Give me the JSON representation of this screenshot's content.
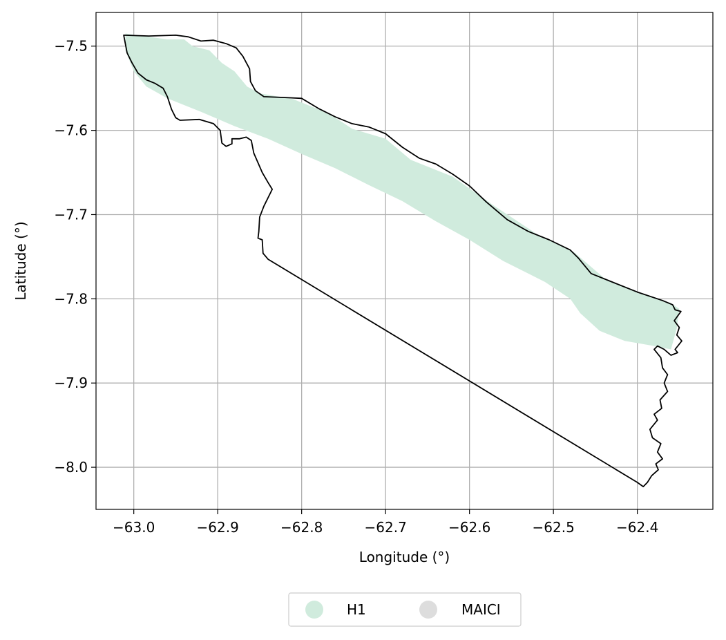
{
  "chart_data": {
    "type": "map",
    "xlabel": "Longitude (°)",
    "ylabel": "Latitude (°)",
    "xlim": [
      -63.045,
      -62.31
    ],
    "ylim": [
      -8.05,
      -7.46
    ],
    "x_ticks": [
      {
        "value": -63.0,
        "label": "−63.0"
      },
      {
        "value": -62.9,
        "label": "−62.9"
      },
      {
        "value": -62.8,
        "label": "−62.8"
      },
      {
        "value": -62.7,
        "label": "−62.7"
      },
      {
        "value": -62.6,
        "label": "−62.6"
      },
      {
        "value": -62.5,
        "label": "−62.5"
      },
      {
        "value": -62.4,
        "label": "−62.4"
      }
    ],
    "y_ticks": [
      {
        "value": -7.5,
        "label": "−7.5"
      },
      {
        "value": -7.6,
        "label": "−7.6"
      },
      {
        "value": -7.7,
        "label": "−7.7"
      },
      {
        "value": -7.8,
        "label": "−7.8"
      },
      {
        "value": -7.9,
        "label": "−7.9"
      },
      {
        "value": -8.0,
        "label": "−8.0"
      }
    ],
    "grid": true,
    "legend": {
      "placement": "bottom-center-outside",
      "entries": [
        {
          "name": "H1",
          "color": "#d0ebdd"
        },
        {
          "name": "MAICI",
          "color": "#dddddd"
        }
      ]
    },
    "colors": {
      "h1_fill": "#d0ebdd",
      "boundary": "#000000",
      "grid": "#b0b0b0"
    },
    "layers": [
      {
        "name": "H1",
        "kind": "filled-polygon",
        "coords": [
          [
            -63.01,
            -7.485
          ],
          [
            -62.96,
            -7.492
          ],
          [
            -62.94,
            -7.492
          ],
          [
            -62.93,
            -7.5
          ],
          [
            -62.91,
            -7.505
          ],
          [
            -62.895,
            -7.52
          ],
          [
            -62.88,
            -7.53
          ],
          [
            -62.865,
            -7.548
          ],
          [
            -62.85,
            -7.556
          ],
          [
            -62.81,
            -7.563
          ],
          [
            -62.78,
            -7.575
          ],
          [
            -62.76,
            -7.585
          ],
          [
            -62.74,
            -7.598
          ],
          [
            -62.7,
            -7.61
          ],
          [
            -62.67,
            -7.635
          ],
          [
            -62.62,
            -7.655
          ],
          [
            -62.57,
            -7.69
          ],
          [
            -62.52,
            -7.723
          ],
          [
            -62.475,
            -7.745
          ],
          [
            -62.44,
            -7.775
          ],
          [
            -62.4,
            -7.793
          ],
          [
            -62.36,
            -7.805
          ],
          [
            -62.35,
            -7.812
          ],
          [
            -62.353,
            -7.835
          ],
          [
            -62.36,
            -7.86
          ],
          [
            -62.38,
            -7.856
          ],
          [
            -62.415,
            -7.85
          ],
          [
            -62.445,
            -7.838
          ],
          [
            -62.468,
            -7.817
          ],
          [
            -62.48,
            -7.8
          ],
          [
            -62.51,
            -7.78
          ],
          [
            -62.56,
            -7.755
          ],
          [
            -62.6,
            -7.73
          ],
          [
            -62.64,
            -7.708
          ],
          [
            -62.68,
            -7.684
          ],
          [
            -62.72,
            -7.665
          ],
          [
            -62.76,
            -7.645
          ],
          [
            -62.8,
            -7.628
          ],
          [
            -62.84,
            -7.61
          ],
          [
            -62.88,
            -7.595
          ],
          [
            -62.92,
            -7.578
          ],
          [
            -62.96,
            -7.562
          ],
          [
            -62.985,
            -7.548
          ],
          [
            -63.0,
            -7.53
          ],
          [
            -63.01,
            -7.505
          ]
        ]
      },
      {
        "name": "boundary",
        "kind": "outline",
        "coords": [
          [
            -63.012,
            -7.487
          ],
          [
            -62.982,
            -7.488
          ],
          [
            -62.95,
            -7.487
          ],
          [
            -62.935,
            -7.489
          ],
          [
            -62.92,
            -7.494
          ],
          [
            -62.905,
            -7.493
          ],
          [
            -62.89,
            -7.497
          ],
          [
            -62.878,
            -7.502
          ],
          [
            -62.87,
            -7.512
          ],
          [
            -62.862,
            -7.527
          ],
          [
            -62.861,
            -7.542
          ],
          [
            -62.855,
            -7.553
          ],
          [
            -62.845,
            -7.56
          ],
          [
            -62.82,
            -7.561
          ],
          [
            -62.8,
            -7.562
          ],
          [
            -62.78,
            -7.574
          ],
          [
            -62.76,
            -7.584
          ],
          [
            -62.74,
            -7.592
          ],
          [
            -62.72,
            -7.596
          ],
          [
            -62.7,
            -7.604
          ],
          [
            -62.68,
            -7.62
          ],
          [
            -62.66,
            -7.633
          ],
          [
            -62.64,
            -7.64
          ],
          [
            -62.62,
            -7.652
          ],
          [
            -62.6,
            -7.666
          ],
          [
            -62.58,
            -7.685
          ],
          [
            -62.555,
            -7.706
          ],
          [
            -62.53,
            -7.72
          ],
          [
            -62.505,
            -7.73
          ],
          [
            -62.48,
            -7.742
          ],
          [
            -62.47,
            -7.752
          ],
          [
            -62.455,
            -7.77
          ],
          [
            -62.43,
            -7.78
          ],
          [
            -62.4,
            -7.792
          ],
          [
            -62.37,
            -7.802
          ],
          [
            -62.358,
            -7.807
          ],
          [
            -62.355,
            -7.813
          ],
          [
            -62.348,
            -7.815
          ],
          [
            -62.356,
            -7.826
          ],
          [
            -62.35,
            -7.834
          ],
          [
            -62.353,
            -7.843
          ],
          [
            -62.347,
            -7.85
          ],
          [
            -62.355,
            -7.86
          ],
          [
            -62.352,
            -7.864
          ],
          [
            -62.36,
            -7.867
          ],
          [
            -62.368,
            -7.86
          ],
          [
            -62.376,
            -7.856
          ],
          [
            -62.38,
            -7.86
          ],
          [
            -62.372,
            -7.87
          ],
          [
            -62.37,
            -7.882
          ],
          [
            -62.364,
            -7.89
          ],
          [
            -62.368,
            -7.9
          ],
          [
            -62.364,
            -7.91
          ],
          [
            -62.373,
            -7.92
          ],
          [
            -62.371,
            -7.93
          ],
          [
            -62.38,
            -7.937
          ],
          [
            -62.376,
            -7.944
          ],
          [
            -62.385,
            -7.955
          ],
          [
            -62.382,
            -7.965
          ],
          [
            -62.372,
            -7.972
          ],
          [
            -62.376,
            -7.982
          ],
          [
            -62.37,
            -7.99
          ],
          [
            -62.378,
            -7.996
          ],
          [
            -62.375,
            -8.003
          ],
          [
            -62.383,
            -8.01
          ],
          [
            -62.388,
            -8.018
          ],
          [
            -62.393,
            -8.023
          ],
          [
            -62.4,
            -8.018
          ],
          [
            -62.84,
            -7.753
          ],
          [
            -62.846,
            -7.746
          ],
          [
            -62.847,
            -7.73
          ],
          [
            -62.852,
            -7.728
          ],
          [
            -62.851,
            -7.72
          ],
          [
            -62.85,
            -7.703
          ],
          [
            -62.845,
            -7.69
          ],
          [
            -62.835,
            -7.67
          ],
          [
            -62.84,
            -7.662
          ],
          [
            -62.847,
            -7.65
          ],
          [
            -62.857,
            -7.627
          ],
          [
            -62.86,
            -7.612
          ],
          [
            -62.866,
            -7.608
          ],
          [
            -62.874,
            -7.61
          ],
          [
            -62.883,
            -7.61
          ],
          [
            -62.883,
            -7.616
          ],
          [
            -62.89,
            -7.619
          ],
          [
            -62.895,
            -7.615
          ],
          [
            -62.897,
            -7.6
          ],
          [
            -62.905,
            -7.592
          ],
          [
            -62.922,
            -7.587
          ],
          [
            -62.945,
            -7.588
          ],
          [
            -62.95,
            -7.585
          ],
          [
            -62.955,
            -7.575
          ],
          [
            -62.96,
            -7.56
          ],
          [
            -62.965,
            -7.55
          ],
          [
            -62.975,
            -7.544
          ],
          [
            -62.985,
            -7.54
          ],
          [
            -62.995,
            -7.532
          ],
          [
            -63.002,
            -7.52
          ],
          [
            -63.008,
            -7.508
          ],
          [
            -63.012,
            -7.487
          ]
        ]
      }
    ]
  }
}
